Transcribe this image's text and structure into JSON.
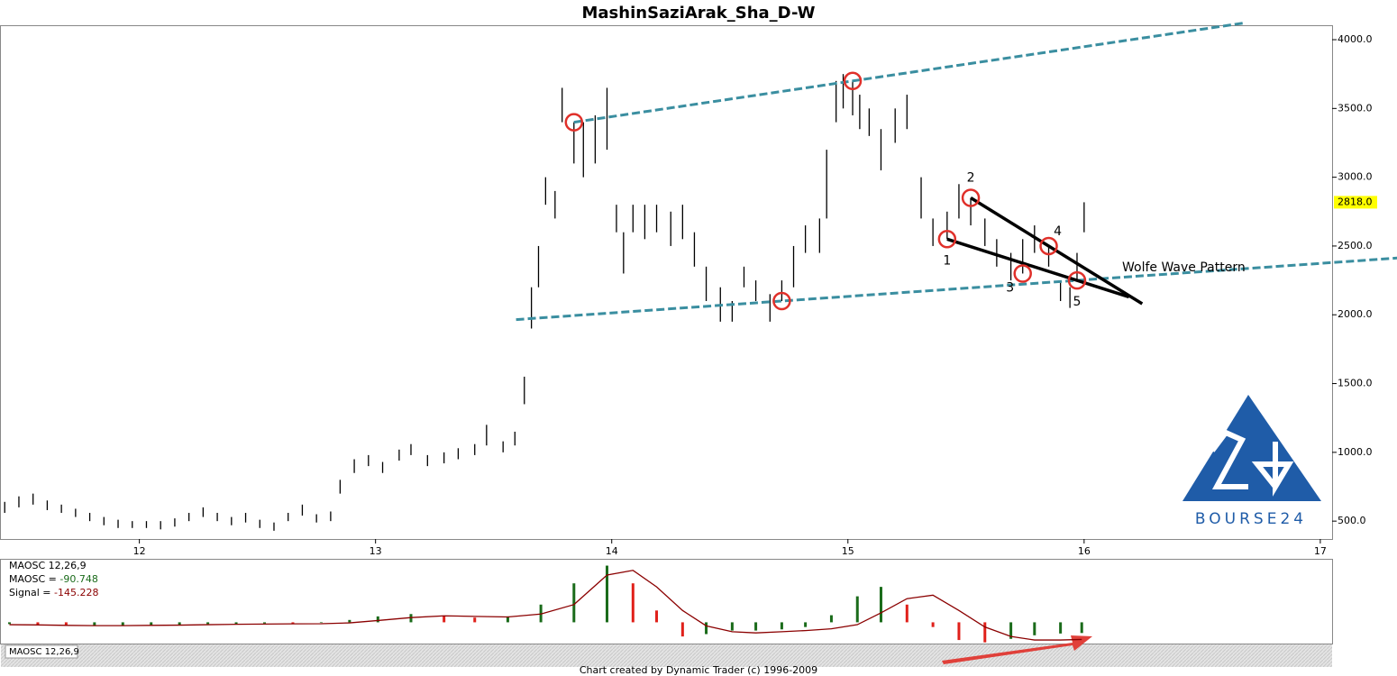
{
  "chart_data": [
    {
      "type": "ohlc",
      "title": "MashinSaziArak_Sha_D-W",
      "color": "#000000",
      "x": [
        11.43,
        11.49,
        11.55,
        11.61,
        11.67,
        11.73,
        11.79,
        11.85,
        11.91,
        11.97,
        12.03,
        12.09,
        12.15,
        12.21,
        12.27,
        12.33,
        12.39,
        12.45,
        12.51,
        12.57,
        12.63,
        12.69,
        12.75,
        12.81,
        12.85,
        12.91,
        12.97,
        13.03,
        13.1,
        13.15,
        13.22,
        13.29,
        13.35,
        13.42,
        13.47,
        13.54,
        13.59,
        13.63,
        13.66,
        13.69,
        13.72,
        13.76,
        13.79,
        13.84,
        13.88,
        13.93,
        13.98,
        14.02,
        14.05,
        14.09,
        14.14,
        14.19,
        14.25,
        14.3,
        14.35,
        14.4,
        14.46,
        14.51,
        14.56,
        14.61,
        14.67,
        14.72,
        14.77,
        14.82,
        14.88,
        14.91,
        14.95,
        14.98,
        15.02,
        15.05,
        15.09,
        15.14,
        15.2,
        15.25,
        15.31,
        15.36,
        15.42,
        15.47,
        15.52,
        15.58,
        15.63,
        15.69,
        15.74,
        15.79,
        15.85,
        15.9,
        15.94,
        15.97,
        16.0
      ],
      "high": [
        640,
        680,
        700,
        650,
        620,
        590,
        560,
        530,
        510,
        500,
        500,
        500,
        520,
        560,
        600,
        560,
        530,
        560,
        510,
        490,
        560,
        620,
        550,
        570,
        800,
        950,
        980,
        930,
        1020,
        1060,
        980,
        1000,
        1030,
        1060,
        1200,
        1080,
        1150,
        1550,
        2200,
        2500,
        3000,
        2900,
        3650,
        3400,
        3400,
        3450,
        3650,
        2800,
        2600,
        2800,
        2800,
        2800,
        2750,
        2800,
        2600,
        2350,
        2200,
        2100,
        2350,
        2250,
        2150,
        2250,
        2500,
        2650,
        2700,
        3200,
        3700,
        3750,
        3700,
        3600,
        3500,
        3350,
        3500,
        3600,
        3000,
        2700,
        2750,
        2950,
        2850,
        2700,
        2550,
        2450,
        2550,
        2650,
        2500,
        2250,
        2200,
        2450,
        2818
      ],
      "low": [
        560,
        600,
        620,
        580,
        560,
        530,
        500,
        470,
        450,
        450,
        450,
        440,
        460,
        500,
        530,
        500,
        470,
        490,
        450,
        430,
        500,
        540,
        490,
        500,
        700,
        850,
        900,
        850,
        940,
        980,
        900,
        920,
        950,
        980,
        1050,
        1000,
        1050,
        1350,
        1900,
        2200,
        2800,
        2700,
        3400,
        3100,
        3000,
        3100,
        3200,
        2600,
        2300,
        2600,
        2550,
        2600,
        2500,
        2550,
        2350,
        2100,
        1950,
        1950,
        2200,
        2100,
        1950,
        2100,
        2200,
        2450,
        2450,
        2700,
        3400,
        3500,
        3450,
        3350,
        3300,
        3050,
        3250,
        3350,
        2700,
        2500,
        2550,
        2700,
        2650,
        2500,
        2350,
        2250,
        2300,
        2450,
        2350,
        2100,
        2050,
        2250,
        2600
      ],
      "xlim": [
        11.41,
        17.05
      ],
      "xticks": [
        12,
        13,
        14,
        15,
        16,
        17
      ],
      "ylim": [
        370,
        4105
      ],
      "yticks": [
        {
          "value": 500,
          "label": "500.0"
        },
        {
          "value": 1000,
          "label": "1000.0"
        },
        {
          "value": 1500,
          "label": "1500.0"
        },
        {
          "value": 2000,
          "label": "2000.0"
        },
        {
          "value": 2500,
          "label": "2500.0"
        },
        {
          "value": 3000,
          "label": "3000.0"
        },
        {
          "value": 3500,
          "label": "3500.0"
        },
        {
          "value": 4000,
          "label": "4000.0"
        }
      ],
      "last_value": {
        "value": 2818,
        "label": "2818.0"
      },
      "annotations": [
        "1",
        "2",
        "3",
        "4",
        "5",
        "Wolfe Wave Pattern"
      ],
      "logo": "BOURSE24"
    },
    {
      "type": "oscillator",
      "title": "MAOSC 12,26,9",
      "up_color": "#1a6b1a",
      "down_color": "#e0201a",
      "x": [
        11.45,
        11.57,
        11.69,
        11.81,
        11.93,
        12.05,
        12.17,
        12.29,
        12.41,
        12.53,
        12.65,
        12.77,
        12.89,
        13.01,
        13.15,
        13.29,
        13.42,
        13.56,
        13.7,
        13.84,
        13.98,
        14.09,
        14.19,
        14.3,
        14.4,
        14.51,
        14.61,
        14.72,
        14.82,
        14.93,
        15.04,
        15.14,
        15.25,
        15.36,
        15.47,
        15.58,
        15.69,
        15.79,
        15.9,
        15.99
      ],
      "series": [
        {
          "name": "MAOSC =",
          "color": "#1a6b1a",
          "values": [
            -15,
            -25,
            -30,
            -30,
            -25,
            -25,
            -20,
            -15,
            -15,
            -10,
            -15,
            -5,
            20,
            50,
            70,
            55,
            40,
            50,
            150,
            330,
            480,
            330,
            100,
            -120,
            -100,
            -70,
            -70,
            -60,
            -40,
            60,
            220,
            300,
            150,
            -40,
            -150,
            -170,
            -140,
            -110,
            -95,
            -90.748
          ]
        },
        {
          "name": "Signal =",
          "color": "#8b0000",
          "values": [
            -20,
            -22,
            -26,
            -28,
            -28,
            -26,
            -24,
            -20,
            -17,
            -15,
            -13,
            -12,
            -5,
            15,
            40,
            55,
            50,
            45,
            70,
            150,
            400,
            440,
            300,
            100,
            -30,
            -80,
            -90,
            -80,
            -70,
            -55,
            -20,
            80,
            200,
            230,
            100,
            -40,
            -120,
            -150,
            -150,
            -145.228
          ]
        }
      ],
      "xlim": [
        11.41,
        17.05
      ],
      "ylim": [
        -180,
        530
      ]
    },
    {
      "footer": "Chart created by Dynamic Trader  (c) 1996-2009"
    }
  ]
}
